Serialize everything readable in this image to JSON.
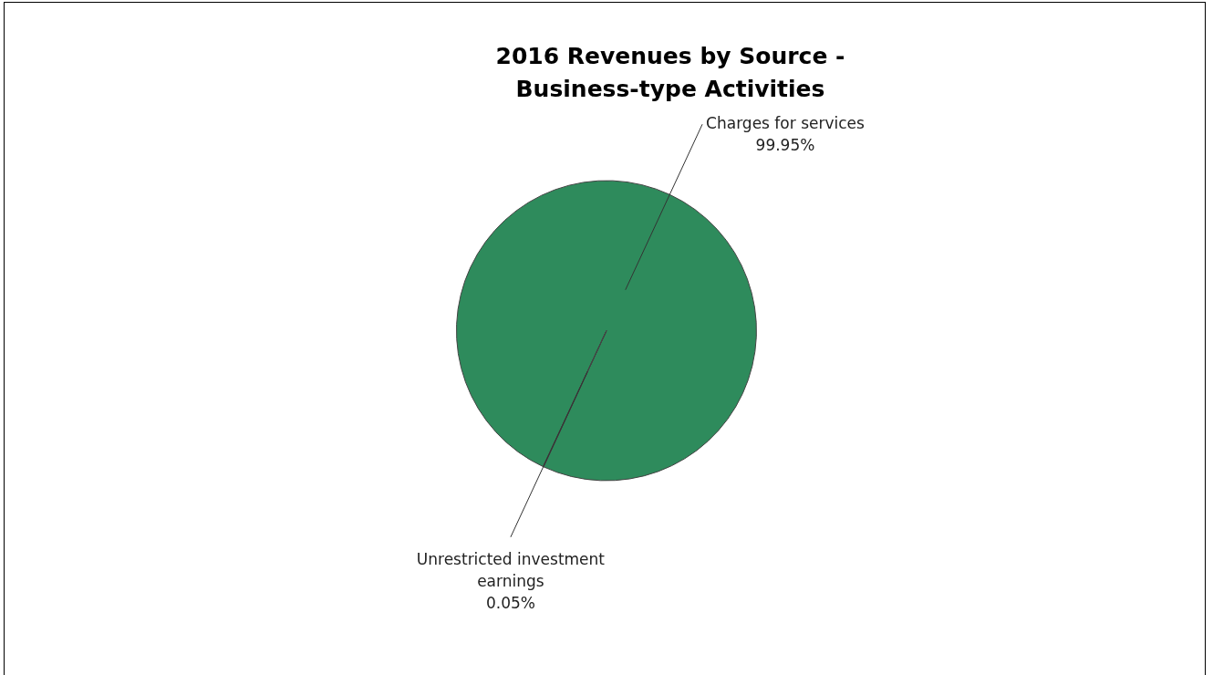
{
  "chart_data": {
    "type": "pie",
    "title": "2016 Revenues by Source - Business-type Activities",
    "categories": [
      "Charges for services",
      "Unrestricted investment earnings"
    ],
    "values": [
      99.95,
      0.05
    ],
    "colors": [
      "#2e8b5c",
      "#4b0b4e"
    ],
    "value_labels": [
      "99.95%",
      "0.05%"
    ],
    "legend": false
  }
}
